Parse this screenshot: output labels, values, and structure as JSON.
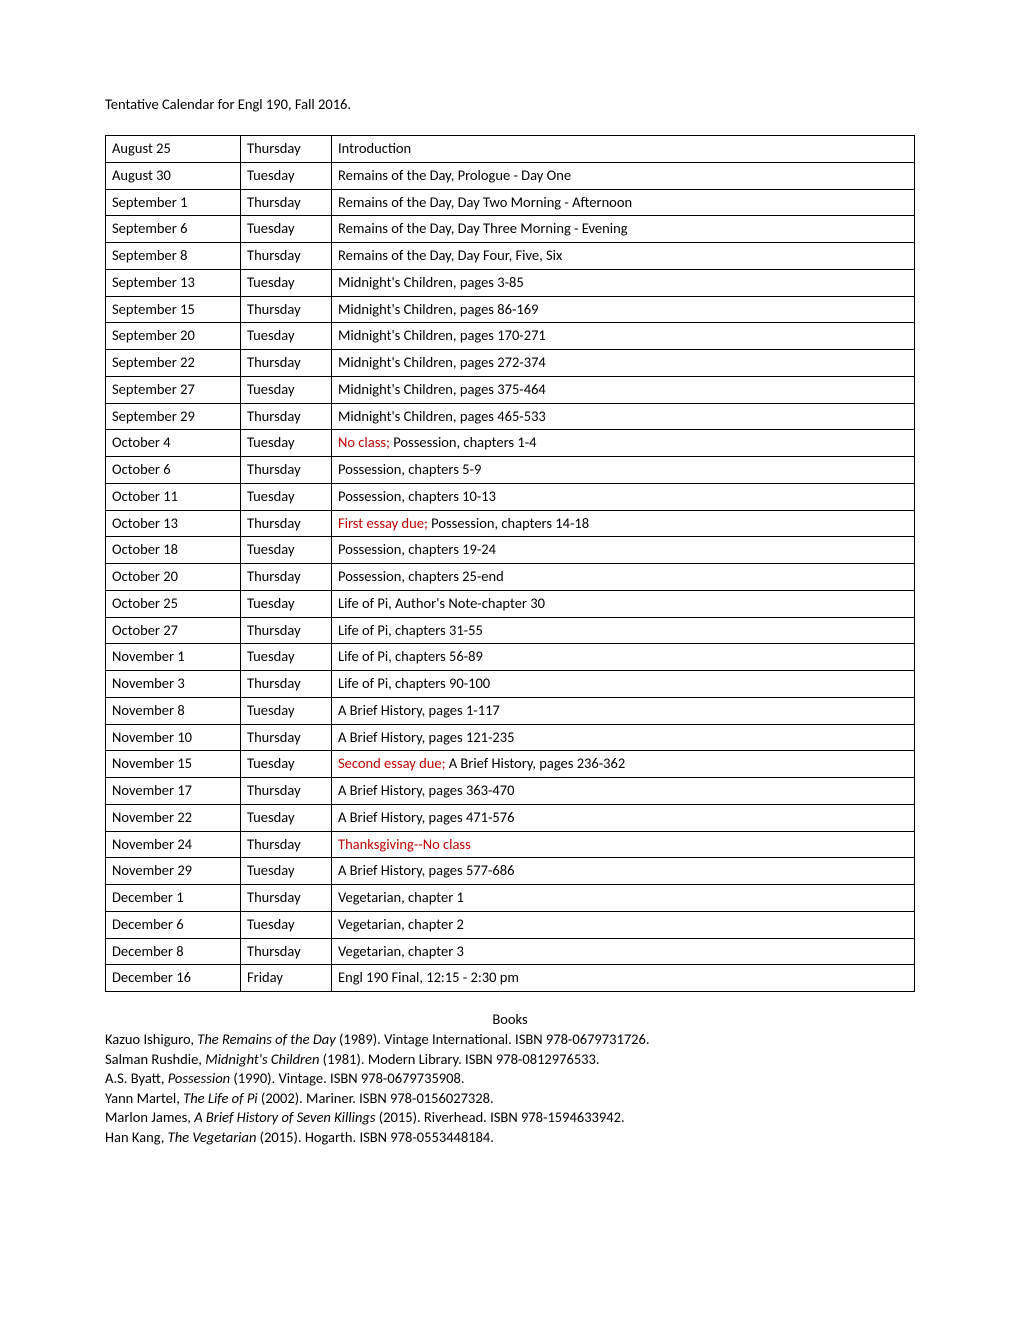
{
  "title": "Tentative Calendar for Engl 190, Fall 2016.",
  "rows": [
    {
      "date": "August 25",
      "day": "Thursday",
      "topic": [
        {
          "t": "Introduction"
        }
      ]
    },
    {
      "date": "August 30",
      "day": "Tuesday",
      "topic": [
        {
          "t": "Remains of the Day, Prologue - Day One"
        }
      ]
    },
    {
      "date": "September 1",
      "day": "Thursday",
      "topic": [
        {
          "t": "Remains of the Day, Day Two Morning - Afternoon"
        }
      ]
    },
    {
      "date": "September 6",
      "day": "Tuesday",
      "topic": [
        {
          "t": "Remains of the Day, Day Three Morning - Evening"
        }
      ]
    },
    {
      "date": "September 8",
      "day": "Thursday",
      "topic": [
        {
          "t": "Remains of the Day, Day Four, Five, Six"
        }
      ]
    },
    {
      "date": "September 13",
      "day": "Tuesday",
      "topic": [
        {
          "t": "Midnight's Children, pages 3-85"
        }
      ]
    },
    {
      "date": "September 15",
      "day": "Thursday",
      "topic": [
        {
          "t": "Midnight's Children, pages 86-169"
        }
      ]
    },
    {
      "date": "September 20",
      "day": "Tuesday",
      "topic": [
        {
          "t": "Midnight's Children, pages 170-271"
        }
      ]
    },
    {
      "date": "September 22",
      "day": "Thursday",
      "topic": [
        {
          "t": "Midnight's Children, pages 272-374"
        }
      ]
    },
    {
      "date": "September 27",
      "day": "Tuesday",
      "topic": [
        {
          "t": "Midnight's Children, pages 375-464"
        }
      ]
    },
    {
      "date": "September 29",
      "day": "Thursday",
      "topic": [
        {
          "t": "Midnight's Children, pages 465-533"
        }
      ]
    },
    {
      "date": "October 4",
      "day": "Tuesday",
      "topic": [
        {
          "t": "No class;",
          "red": true
        },
        {
          "t": " Possession, chapters 1-4"
        }
      ]
    },
    {
      "date": "October 6",
      "day": "Thursday",
      "topic": [
        {
          "t": "Possession, chapters 5-9"
        }
      ]
    },
    {
      "date": "October 11",
      "day": "Tuesday",
      "topic": [
        {
          "t": "Possession, chapters 10-13"
        }
      ]
    },
    {
      "date": "October 13",
      "day": "Thursday",
      "topic": [
        {
          "t": "First essay due;",
          "red": true
        },
        {
          "t": " Possession, chapters 14-18"
        }
      ]
    },
    {
      "date": "October 18",
      "day": "Tuesday",
      "topic": [
        {
          "t": "Possession, chapters 19-24"
        }
      ]
    },
    {
      "date": "October 20",
      "day": "Thursday",
      "topic": [
        {
          "t": "Possession, chapters 25-end"
        }
      ]
    },
    {
      "date": "October 25",
      "day": "Tuesday",
      "topic": [
        {
          "t": "Life of Pi, Author's Note-chapter 30"
        }
      ]
    },
    {
      "date": "October 27",
      "day": "Thursday",
      "topic": [
        {
          "t": "Life of Pi, chapters 31-55"
        }
      ]
    },
    {
      "date": "November 1",
      "day": "Tuesday",
      "topic": [
        {
          "t": "Life of Pi, chapters 56-89"
        }
      ]
    },
    {
      "date": "November 3",
      "day": "Thursday",
      "topic": [
        {
          "t": "Life of Pi, chapters 90-100"
        }
      ]
    },
    {
      "date": "November 8",
      "day": "Tuesday",
      "topic": [
        {
          "t": "A Brief History, pages 1-117"
        }
      ]
    },
    {
      "date": "November 10",
      "day": "Thursday",
      "topic": [
        {
          "t": "A Brief History, pages 121-235"
        }
      ]
    },
    {
      "date": "November 15",
      "day": "Tuesday",
      "topic": [
        {
          "t": "Second essay due;",
          "red": true
        },
        {
          "t": " A Brief History, pages 236-362"
        }
      ]
    },
    {
      "date": "November 17",
      "day": "Thursday",
      "topic": [
        {
          "t": "A Brief History, pages 363-470"
        }
      ]
    },
    {
      "date": "November 22",
      "day": "Tuesday",
      "topic": [
        {
          "t": "A Brief History, pages 471-576"
        }
      ]
    },
    {
      "date": "November 24",
      "day": "Thursday",
      "topic": [
        {
          "t": "Thanksgiving--No class",
          "red": true
        }
      ]
    },
    {
      "date": "November 29",
      "day": "Tuesday",
      "topic": [
        {
          "t": "A Brief History, pages 577-686"
        }
      ]
    },
    {
      "date": "December 1",
      "day": "Thursday",
      "topic": [
        {
          "t": "Vegetarian, chapter 1"
        }
      ]
    },
    {
      "date": "December 6",
      "day": "Tuesday",
      "topic": [
        {
          "t": "Vegetarian, chapter 2"
        }
      ]
    },
    {
      "date": "December 8",
      "day": "Thursday",
      "topic": [
        {
          "t": "Vegetarian, chapter 3"
        }
      ]
    },
    {
      "date": "December 16",
      "day": "Friday",
      "topic": [
        {
          "t": "Engl 190 Final, 12:15 - 2:30 pm"
        }
      ]
    }
  ],
  "books_header": "Books",
  "books": [
    [
      {
        "t": "Kazuo Ishiguro, "
      },
      {
        "t": "The Remains of the Day",
        "it": true
      },
      {
        "t": " (1989). Vintage International. ISBN 978-0679731726."
      }
    ],
    [
      {
        "t": "Salman Rushdie, "
      },
      {
        "t": "Midnight's Children",
        "it": true
      },
      {
        "t": " (1981). Modern Library. ISBN 978-0812976533."
      }
    ],
    [
      {
        "t": "A.S. Byatt, "
      },
      {
        "t": "Possession",
        "it": true
      },
      {
        "t": " (1990). Vintage. ISBN 978-0679735908."
      }
    ],
    [
      {
        "t": "Yann Martel, "
      },
      {
        "t": "The Life of Pi",
        "it": true
      },
      {
        "t": " (2002). Mariner. ISBN 978-0156027328."
      }
    ],
    [
      {
        "t": "Marlon James, "
      },
      {
        "t": "A Brief History of Seven Killings",
        "it": true
      },
      {
        "t": " (2015). Riverhead. ISBN 978-1594633942."
      }
    ],
    [
      {
        "t": "Han Kang, "
      },
      {
        "t": "The Vegetarian",
        "it": true
      },
      {
        "t": " (2015). Hogarth. ISBN 978-0553448184."
      }
    ]
  ]
}
